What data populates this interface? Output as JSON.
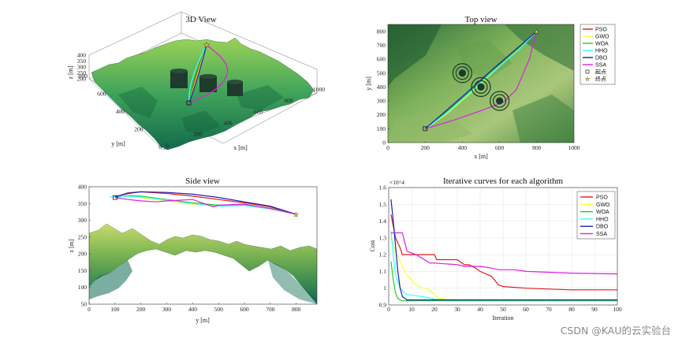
{
  "colors": {
    "PSO": "#e31a1c",
    "GWO": "#ffff33",
    "WOA": "#22cc22",
    "HHO": "#33ffff",
    "DBO": "#1f1fb4",
    "SSA": "#e01fe0"
  },
  "watermark": "CSDN @KAU的云实验台",
  "chart_data": [
    {
      "type": "line",
      "title": "3D View",
      "xlabel": "x [m]",
      "ylabel": "y [m]",
      "zlabel": "z [m]",
      "xticks": [
        "0",
        "200",
        "400",
        "600",
        "800",
        "1000"
      ],
      "yticks": [
        "0",
        "200",
        "400",
        "600",
        "800"
      ],
      "zticks": [
        "200",
        "250",
        "300",
        "350",
        "400"
      ],
      "grid": true
    },
    {
      "type": "line",
      "title": "Top view",
      "xlabel": "x [m]",
      "ylabel": "y [m]",
      "xlim": [
        0,
        1000
      ],
      "ylim": [
        0,
        850
      ],
      "xticks": [
        "0",
        "200",
        "400",
        "600",
        "800",
        "1000"
      ],
      "yticks": [
        "0",
        "100",
        "200",
        "300",
        "400",
        "500",
        "600",
        "700",
        "800"
      ],
      "start": [
        200,
        100
      ],
      "goal": [
        800,
        800
      ],
      "threats": [
        {
          "x": 400,
          "y": 500
        },
        {
          "x": 500,
          "y": 400
        },
        {
          "x": 600,
          "y": 300
        }
      ],
      "legend": [
        "PSO",
        "GWO",
        "WOA",
        "HHO",
        "DBO",
        "SSA",
        "起点",
        "终点"
      ],
      "legend_position": "outside-right",
      "series": [
        {
          "name": "PSO",
          "x": [
            200,
            300,
            420,
            560,
            700,
            800
          ],
          "y": [
            100,
            210,
            350,
            520,
            680,
            800
          ]
        },
        {
          "name": "GWO",
          "x": [
            200,
            310,
            430,
            560,
            700,
            800
          ],
          "y": [
            100,
            200,
            340,
            500,
            670,
            800
          ]
        },
        {
          "name": "WOA",
          "x": [
            200,
            300,
            420,
            560,
            700,
            800
          ],
          "y": [
            100,
            205,
            345,
            515,
            675,
            800
          ]
        },
        {
          "name": "HHO",
          "x": [
            200,
            305,
            425,
            565,
            705,
            800
          ],
          "y": [
            100,
            200,
            340,
            510,
            670,
            800
          ]
        },
        {
          "name": "DBO",
          "x": [
            200,
            300,
            420,
            560,
            700,
            800
          ],
          "y": [
            100,
            215,
            355,
            525,
            685,
            800
          ]
        },
        {
          "name": "SSA",
          "x": [
            200,
            350,
            500,
            620,
            690,
            760,
            800
          ],
          "y": [
            100,
            160,
            230,
            290,
            380,
            600,
            800
          ]
        }
      ]
    },
    {
      "type": "line",
      "title": "Side view",
      "xlabel": "y [m]",
      "ylabel": "z [m]",
      "xlim": [
        0,
        880
      ],
      "ylim": [
        50,
        400
      ],
      "xticks": [
        "0",
        "100",
        "200",
        "300",
        "400",
        "500",
        "600",
        "700",
        "800"
      ],
      "yticks": [
        "50",
        "100",
        "150",
        "200",
        "250",
        "300",
        "350",
        "400"
      ],
      "series": [
        {
          "name": "PSO",
          "x": [
            100,
            150,
            200,
            300,
            400,
            500,
            600,
            700,
            800
          ],
          "y": [
            370,
            382,
            385,
            380,
            372,
            362,
            352,
            340,
            318
          ]
        },
        {
          "name": "GWO",
          "x": [
            100,
            150,
            200,
            300,
            400,
            500,
            600,
            700,
            800
          ],
          "y": [
            368,
            372,
            368,
            358,
            348,
            342,
            344,
            336,
            318
          ]
        },
        {
          "name": "WOA",
          "x": [
            100,
            150,
            200,
            300,
            400,
            500,
            600,
            700,
            800
          ],
          "y": [
            368,
            374,
            372,
            362,
            352,
            345,
            346,
            336,
            318
          ]
        },
        {
          "name": "HHO",
          "x": [
            80,
            100,
            150,
            200,
            300,
            400,
            500,
            600,
            700,
            800
          ],
          "y": [
            370,
            370,
            372,
            370,
            360,
            350,
            342,
            344,
            334,
            318
          ]
        },
        {
          "name": "DBO",
          "x": [
            100,
            150,
            200,
            300,
            400,
            500,
            600,
            700,
            800
          ],
          "y": [
            370,
            380,
            385,
            383,
            378,
            368,
            355,
            342,
            318
          ]
        },
        {
          "name": "SSA",
          "x": [
            100,
            150,
            200,
            260,
            300,
            400,
            480,
            500,
            600,
            700,
            800
          ],
          "y": [
            368,
            362,
            358,
            355,
            358,
            362,
            340,
            345,
            348,
            335,
            318
          ]
        }
      ]
    },
    {
      "type": "line",
      "title": "Iterative curves for each algorithm",
      "xlabel": "Iteration",
      "ylabel": "Cost",
      "exponent": "×10^4",
      "xlim": [
        0,
        100
      ],
      "ylim": [
        0.9,
        1.6
      ],
      "xticks": [
        "0",
        "10",
        "20",
        "30",
        "40",
        "50",
        "60",
        "70",
        "80",
        "90",
        "100"
      ],
      "yticks": [
        "0.9",
        "1",
        "1.1",
        "1.2",
        "1.3",
        "1.4",
        "1.5",
        "1.6"
      ],
      "grid": true,
      "legend_position": "top-right",
      "series": [
        {
          "name": "PSO",
          "x": [
            1,
            3,
            5,
            6,
            10,
            20,
            21,
            30,
            33,
            35,
            38,
            40,
            45,
            48,
            50,
            60,
            70,
            80,
            100
          ],
          "y": [
            1.44,
            1.3,
            1.24,
            1.2,
            1.2,
            1.2,
            1.17,
            1.17,
            1.14,
            1.14,
            1.12,
            1.1,
            1.07,
            1.02,
            1.01,
            1.0,
            0.995,
            0.99,
            0.99
          ]
        },
        {
          "name": "GWO",
          "x": [
            1,
            3,
            5,
            7,
            10,
            12,
            15,
            17,
            20,
            22,
            25,
            30,
            100
          ],
          "y": [
            1.3,
            1.22,
            1.16,
            1.1,
            1.05,
            1.02,
            1.0,
            1.0,
            0.96,
            0.94,
            0.935,
            0.93,
            0.93
          ]
        },
        {
          "name": "WOA",
          "x": [
            1,
            2,
            3,
            4,
            5,
            6,
            8,
            10,
            100
          ],
          "y": [
            1.16,
            1.05,
            0.97,
            0.94,
            0.93,
            0.925,
            0.925,
            0.925,
            0.925
          ]
        },
        {
          "name": "HHO",
          "x": [
            1,
            2,
            3,
            5,
            7,
            9,
            12,
            15,
            20,
            25,
            30,
            100
          ],
          "y": [
            1.34,
            1.2,
            1.08,
            1.0,
            0.97,
            0.96,
            0.955,
            0.95,
            0.935,
            0.93,
            0.93,
            0.93
          ]
        },
        {
          "name": "DBO",
          "x": [
            1,
            2,
            3,
            4,
            5,
            6,
            8,
            10,
            100
          ],
          "y": [
            1.53,
            1.4,
            1.25,
            1.1,
            1.0,
            0.95,
            0.93,
            0.93,
            0.93
          ]
        },
        {
          "name": "SSA",
          "x": [
            1,
            2,
            3,
            5,
            6,
            8,
            12,
            18,
            20,
            30,
            33,
            40,
            45,
            48,
            55,
            60,
            80,
            100
          ],
          "y": [
            1.33,
            1.33,
            1.33,
            1.33,
            1.33,
            1.22,
            1.2,
            1.15,
            1.15,
            1.14,
            1.13,
            1.13,
            1.12,
            1.11,
            1.11,
            1.1,
            1.09,
            1.085
          ]
        }
      ]
    }
  ]
}
